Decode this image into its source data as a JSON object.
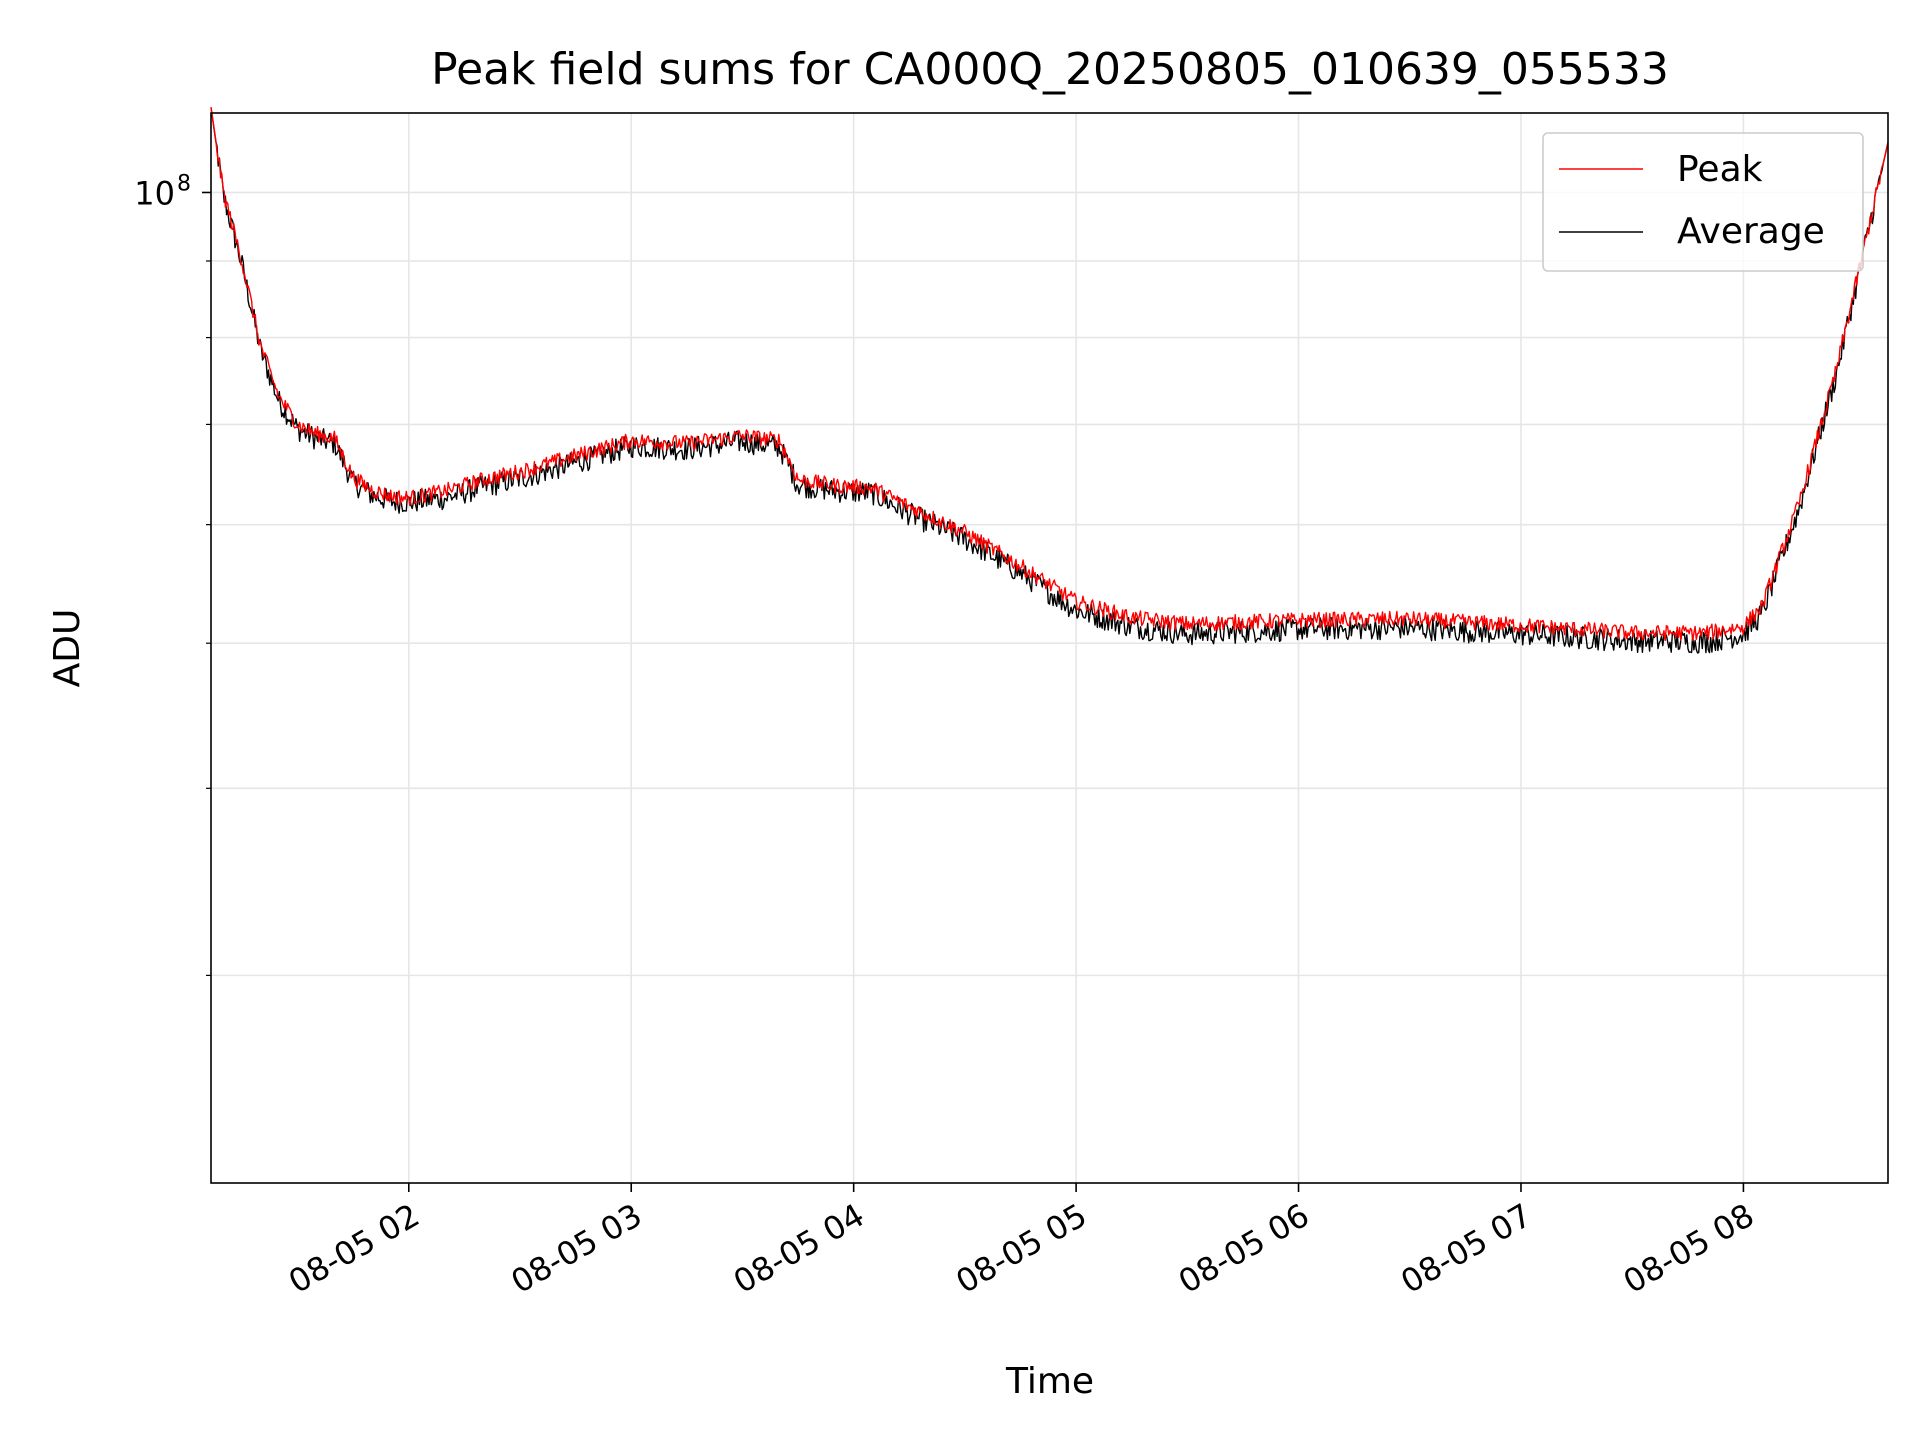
{
  "chart_data": {
    "type": "line",
    "title": "Peak field sums for CA000Q_20250805_010639_055533",
    "xlabel": "Time",
    "ylabel": "ADU",
    "y_scale": "log",
    "xlim": [
      "2025-08-05 01:06:39",
      "2025-08-05 08:39:00"
    ],
    "ylim": [
      21800000,
      113000000
    ],
    "x_ticks": [
      {
        "value": "2025-08-05 02:00",
        "label": "08-05 02"
      },
      {
        "value": "2025-08-05 03:00",
        "label": "08-05 03"
      },
      {
        "value": "2025-08-05 04:00",
        "label": "08-05 04"
      },
      {
        "value": "2025-08-05 05:00",
        "label": "08-05 05"
      },
      {
        "value": "2025-08-05 06:00",
        "label": "08-05 06"
      },
      {
        "value": "2025-08-05 07:00",
        "label": "08-05 07"
      },
      {
        "value": "2025-08-05 08:00",
        "label": "08-05 08"
      }
    ],
    "y_major_ticks": [
      {
        "value": 100000000,
        "label_base": "10",
        "label_exp": "8"
      }
    ],
    "y_minor_ticks": [
      30000000,
      40000000,
      50000000,
      60000000,
      70000000,
      80000000,
      90000000
    ],
    "grid": true,
    "legend_position": "top-right",
    "series": [
      {
        "name": "Peak",
        "color": "#ff0000",
        "noise": 0.012,
        "x": [
          "2025-08-05 01:06:39",
          "2025-08-05 01:10",
          "2025-08-05 01:15",
          "2025-08-05 01:20",
          "2025-08-05 01:25",
          "2025-08-05 01:30",
          "2025-08-05 01:35",
          "2025-08-05 01:40",
          "2025-08-05 01:45",
          "2025-08-05 01:50",
          "2025-08-05 01:55",
          "2025-08-05 02:00",
          "2025-08-05 02:10",
          "2025-08-05 02:20",
          "2025-08-05 02:30",
          "2025-08-05 02:45",
          "2025-08-05 03:00",
          "2025-08-05 03:15",
          "2025-08-05 03:30",
          "2025-08-05 03:40",
          "2025-08-05 03:45",
          "2025-08-05 03:55",
          "2025-08-05 04:05",
          "2025-08-05 04:15",
          "2025-08-05 04:30",
          "2025-08-05 04:45",
          "2025-08-05 05:00",
          "2025-08-05 05:15",
          "2025-08-05 05:30",
          "2025-08-05 06:00",
          "2025-08-05 06:30",
          "2025-08-05 07:00",
          "2025-08-05 07:30",
          "2025-08-05 07:50",
          "2025-08-05 08:00",
          "2025-08-05 08:05",
          "2025-08-05 08:15",
          "2025-08-05 08:25",
          "2025-08-05 08:39"
        ],
        "y": [
          114000000,
          100000000,
          90000000,
          79000000,
          73000000,
          70000000,
          69000000,
          68500000,
          64500000,
          63300000,
          62700000,
          62500000,
          63200000,
          64300000,
          65100000,
          66700000,
          68300000,
          68000000,
          68800000,
          68300000,
          64300000,
          63700000,
          63500000,
          61700000,
          59300000,
          56300000,
          53300000,
          52000000,
          51500000,
          51800000,
          51900000,
          51400000,
          50800000,
          50800000,
          51300000,
          52900000,
          62000000,
          76000000,
          108000000
        ]
      },
      {
        "name": "Average",
        "color": "#000000",
        "noise": 0.018,
        "x": [
          "2025-08-05 01:06:39",
          "2025-08-05 01:10",
          "2025-08-05 01:15",
          "2025-08-05 01:20",
          "2025-08-05 01:25",
          "2025-08-05 01:30",
          "2025-08-05 01:35",
          "2025-08-05 01:40",
          "2025-08-05 01:45",
          "2025-08-05 01:50",
          "2025-08-05 01:55",
          "2025-08-05 02:00",
          "2025-08-05 02:10",
          "2025-08-05 02:20",
          "2025-08-05 02:30",
          "2025-08-05 02:45",
          "2025-08-05 03:00",
          "2025-08-05 03:15",
          "2025-08-05 03:30",
          "2025-08-05 03:40",
          "2025-08-05 03:45",
          "2025-08-05 03:55",
          "2025-08-05 04:05",
          "2025-08-05 04:15",
          "2025-08-05 04:30",
          "2025-08-05 04:45",
          "2025-08-05 05:00",
          "2025-08-05 05:15",
          "2025-08-05 05:30",
          "2025-08-05 06:00",
          "2025-08-05 06:30",
          "2025-08-05 07:00",
          "2025-08-05 07:30",
          "2025-08-05 07:50",
          "2025-08-05 08:00",
          "2025-08-05 08:05",
          "2025-08-05 08:15",
          "2025-08-05 08:25",
          "2025-08-05 08:39"
        ],
        "y": [
          114000000,
          99500000,
          89500000,
          78500000,
          72500000,
          69500000,
          68500000,
          68000000,
          64000000,
          62800000,
          62200000,
          62100000,
          62500000,
          63600000,
          64400000,
          66000000,
          67700000,
          67400000,
          68200000,
          67600000,
          63800000,
          63200000,
          63000000,
          61000000,
          58700000,
          55700000,
          52600000,
          51300000,
          50700000,
          51100000,
          51200000,
          50700000,
          50200000,
          50100000,
          50700000,
          52300000,
          61500000,
          75500000,
          108000000
        ]
      }
    ]
  }
}
